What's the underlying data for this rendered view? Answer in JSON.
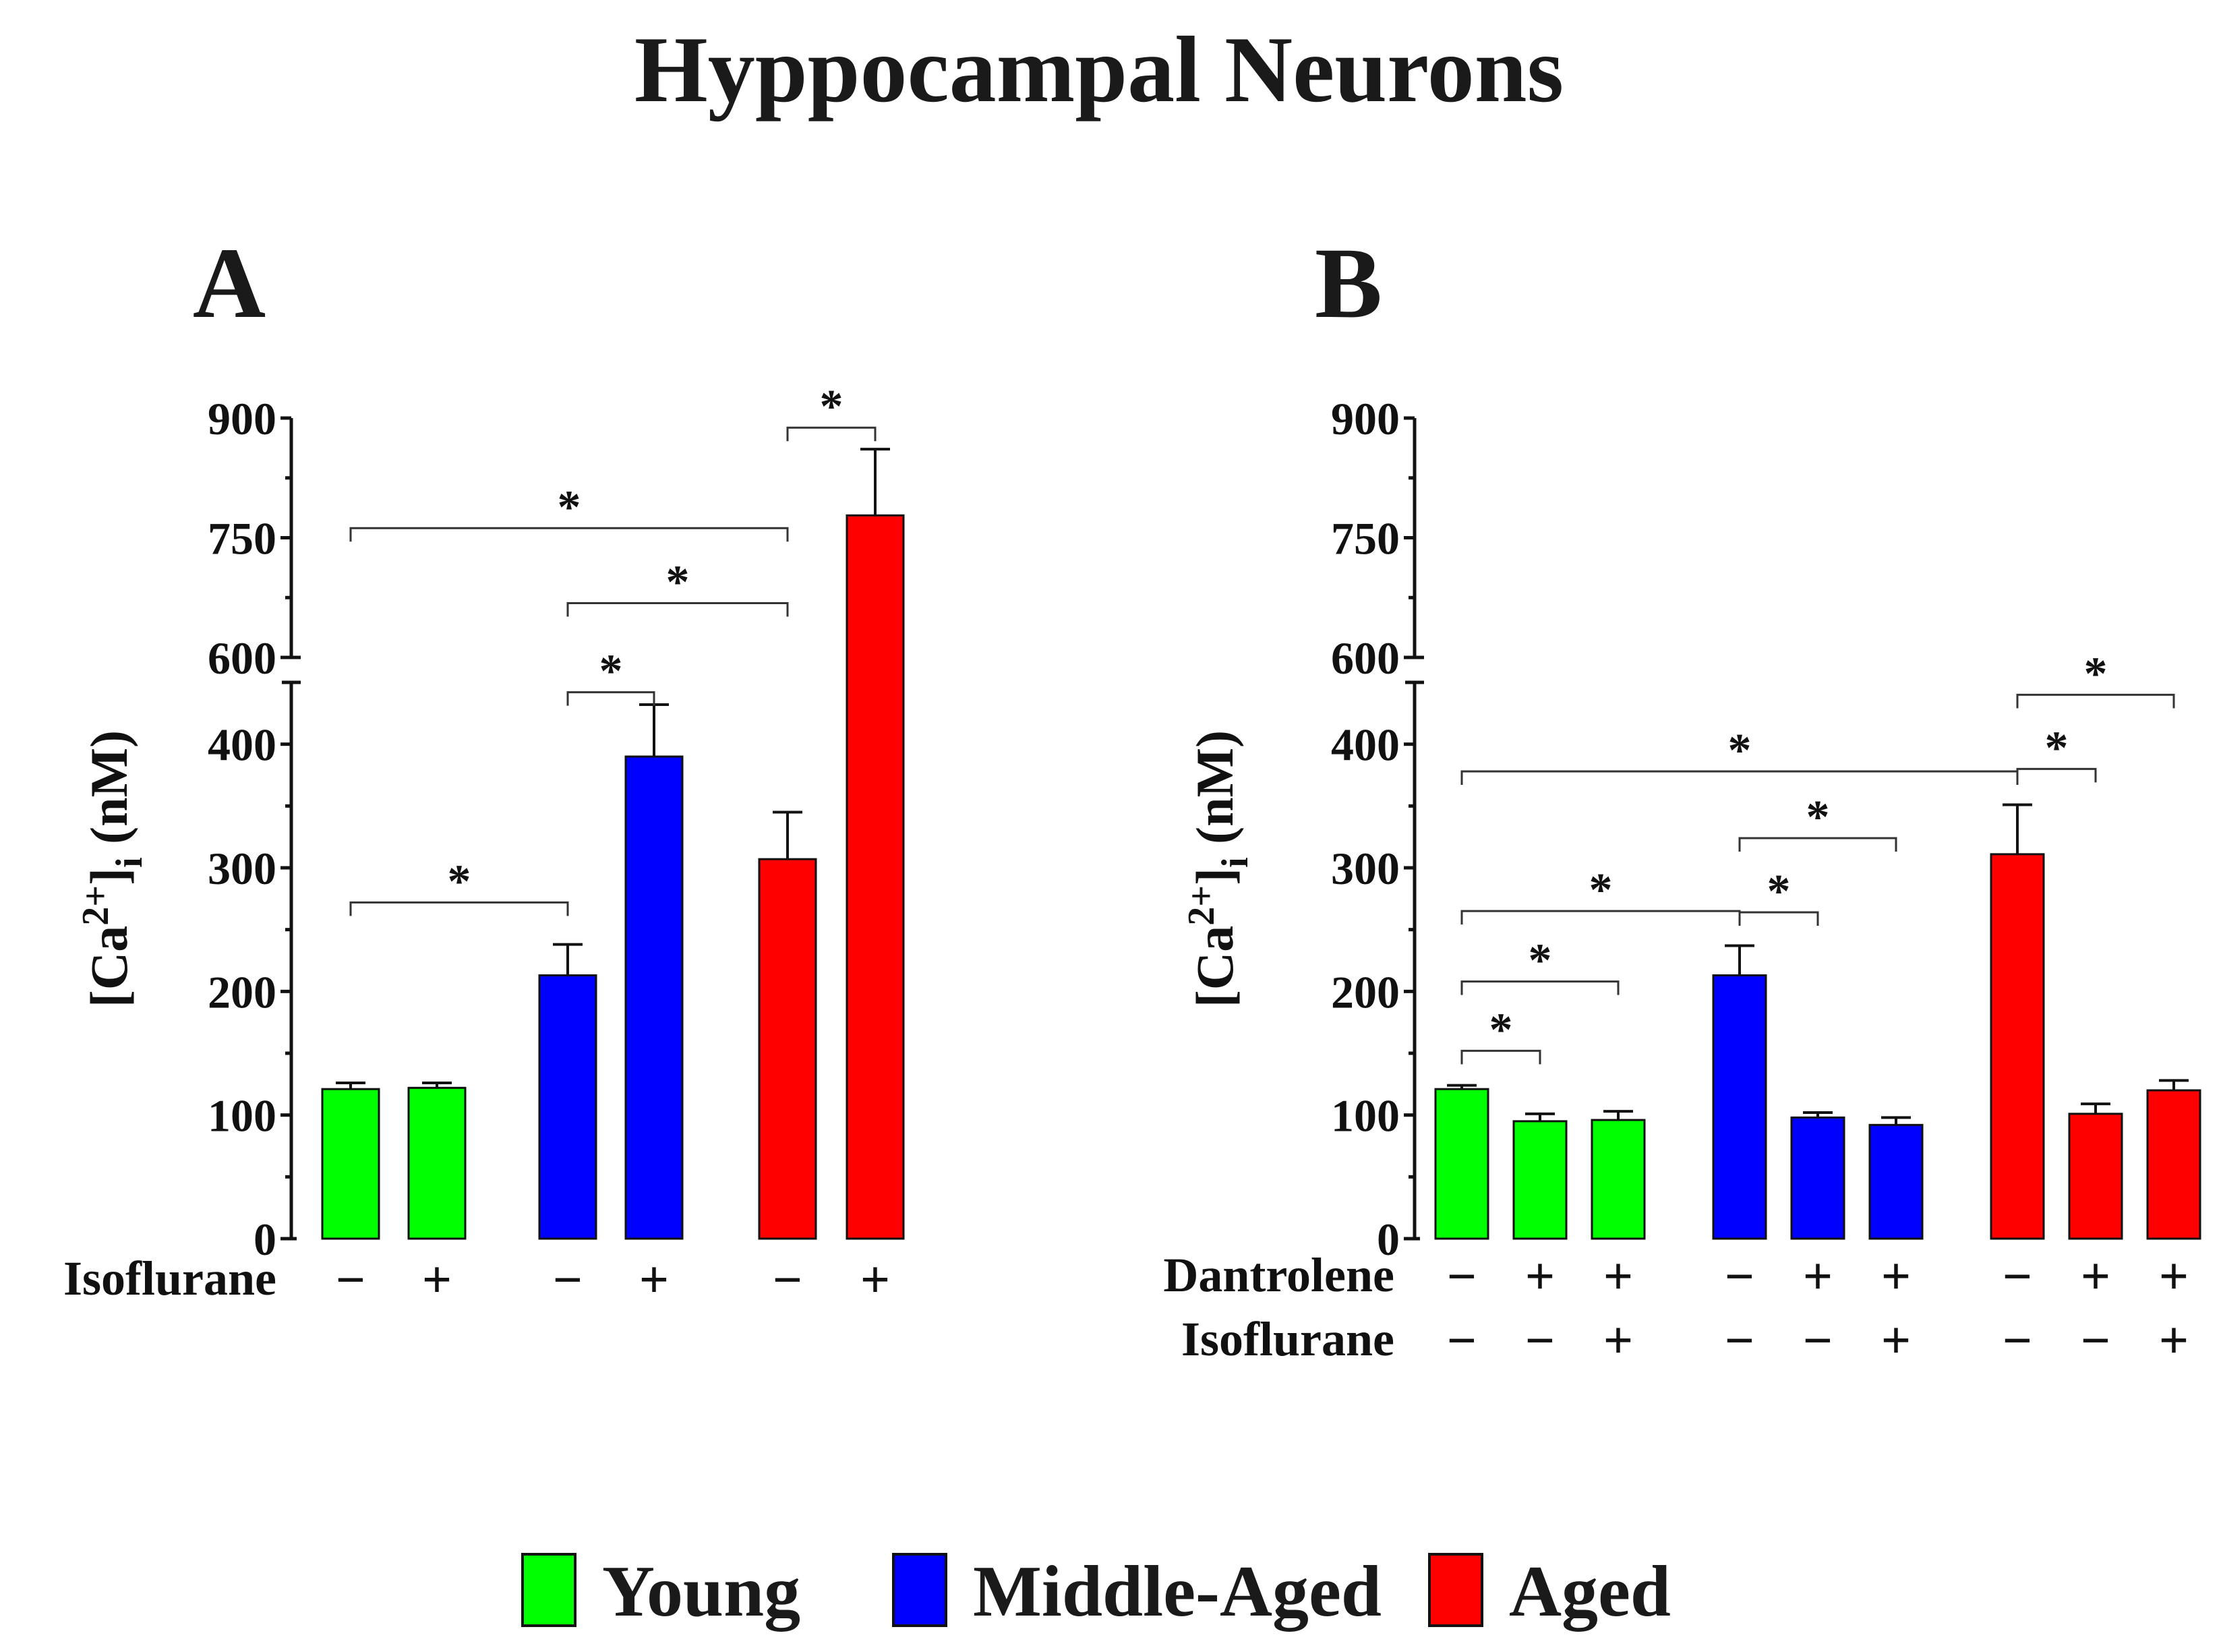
{
  "title": "Hyppocampal Neurons",
  "groups": [
    {
      "name": "Young",
      "color": "#00ff00"
    },
    {
      "name": "Middle-Aged",
      "color": "#0000ff"
    },
    {
      "name": "Aged",
      "color": "#ff0000"
    }
  ],
  "chart_data": [
    {
      "panel": "A",
      "type": "bar",
      "ylabel": "[Ca2+]i (nM)",
      "ylim": [
        0,
        900
      ],
      "axis_break": [
        450,
        600
      ],
      "yticks": [
        0,
        100,
        200,
        300,
        400,
        600,
        750,
        900
      ],
      "treatment_rows": [
        {
          "label": "Isoflurane",
          "signs": [
            "−",
            "+",
            "−",
            "+",
            "−",
            "+"
          ]
        }
      ],
      "bars": [
        {
          "group": "Young",
          "value": 121,
          "error": 5
        },
        {
          "group": "Young",
          "value": 122,
          "error": 4
        },
        {
          "group": "Middle-Aged",
          "value": 213,
          "error": 25
        },
        {
          "group": "Middle-Aged",
          "value": 390,
          "error": 42
        },
        {
          "group": "Aged",
          "value": 307,
          "error": 38
        },
        {
          "group": "Aged",
          "value": 778,
          "error": 83
        }
      ],
      "significance": [
        {
          "from": 0,
          "to": 2,
          "y": 272,
          "label": "*"
        },
        {
          "from": 2,
          "to": 3,
          "y": 442,
          "label": "*"
        },
        {
          "from": 2,
          "to": 4,
          "y": 668,
          "label": "*"
        },
        {
          "from": 0,
          "to": 4,
          "y": 762,
          "label": "*"
        },
        {
          "from": 4,
          "to": 5,
          "y": 888,
          "label": "*"
        }
      ]
    },
    {
      "panel": "B",
      "type": "bar",
      "ylabel": "[Ca2+]i (nM)",
      "ylim": [
        0,
        900
      ],
      "axis_break": [
        450,
        600
      ],
      "yticks": [
        0,
        100,
        200,
        300,
        400,
        600,
        750,
        900
      ],
      "treatment_rows": [
        {
          "label": "Dantrolene",
          "signs": [
            "−",
            "+",
            "+",
            "−",
            "+",
            "+",
            "−",
            "+",
            "+"
          ]
        },
        {
          "label": "Isoflurane",
          "signs": [
            "−",
            "−",
            "+",
            "−",
            "−",
            "+",
            "−",
            "−",
            "+"
          ]
        }
      ],
      "bars": [
        {
          "group": "Young",
          "value": 121,
          "error": 3
        },
        {
          "group": "Young",
          "value": 95,
          "error": 6
        },
        {
          "group": "Young",
          "value": 96,
          "error": 7
        },
        {
          "group": "Middle-Aged",
          "value": 213,
          "error": 24
        },
        {
          "group": "Middle-Aged",
          "value": 98,
          "error": 4
        },
        {
          "group": "Middle-Aged",
          "value": 92,
          "error": 6
        },
        {
          "group": "Aged",
          "value": 311,
          "error": 40
        },
        {
          "group": "Aged",
          "value": 101,
          "error": 8
        },
        {
          "group": "Aged",
          "value": 120,
          "error": 8
        }
      ],
      "significance": [
        {
          "from": 0,
          "to": 1,
          "y": 152,
          "label": "*"
        },
        {
          "from": 0,
          "to": 2,
          "y": 208,
          "label": "*"
        },
        {
          "from": 0,
          "to": 3,
          "y": 265,
          "label": "*"
        },
        {
          "from": 3,
          "to": 4,
          "y": 264,
          "label": "*"
        },
        {
          "from": 3,
          "to": 5,
          "y": 324,
          "label": "*"
        },
        {
          "from": 0,
          "to": 6,
          "y": 378,
          "label": "*"
        },
        {
          "from": 6,
          "to": 7,
          "y": 380,
          "label": "*"
        },
        {
          "from": 6,
          "to": 8,
          "y": 440,
          "label": "*"
        }
      ]
    }
  ]
}
